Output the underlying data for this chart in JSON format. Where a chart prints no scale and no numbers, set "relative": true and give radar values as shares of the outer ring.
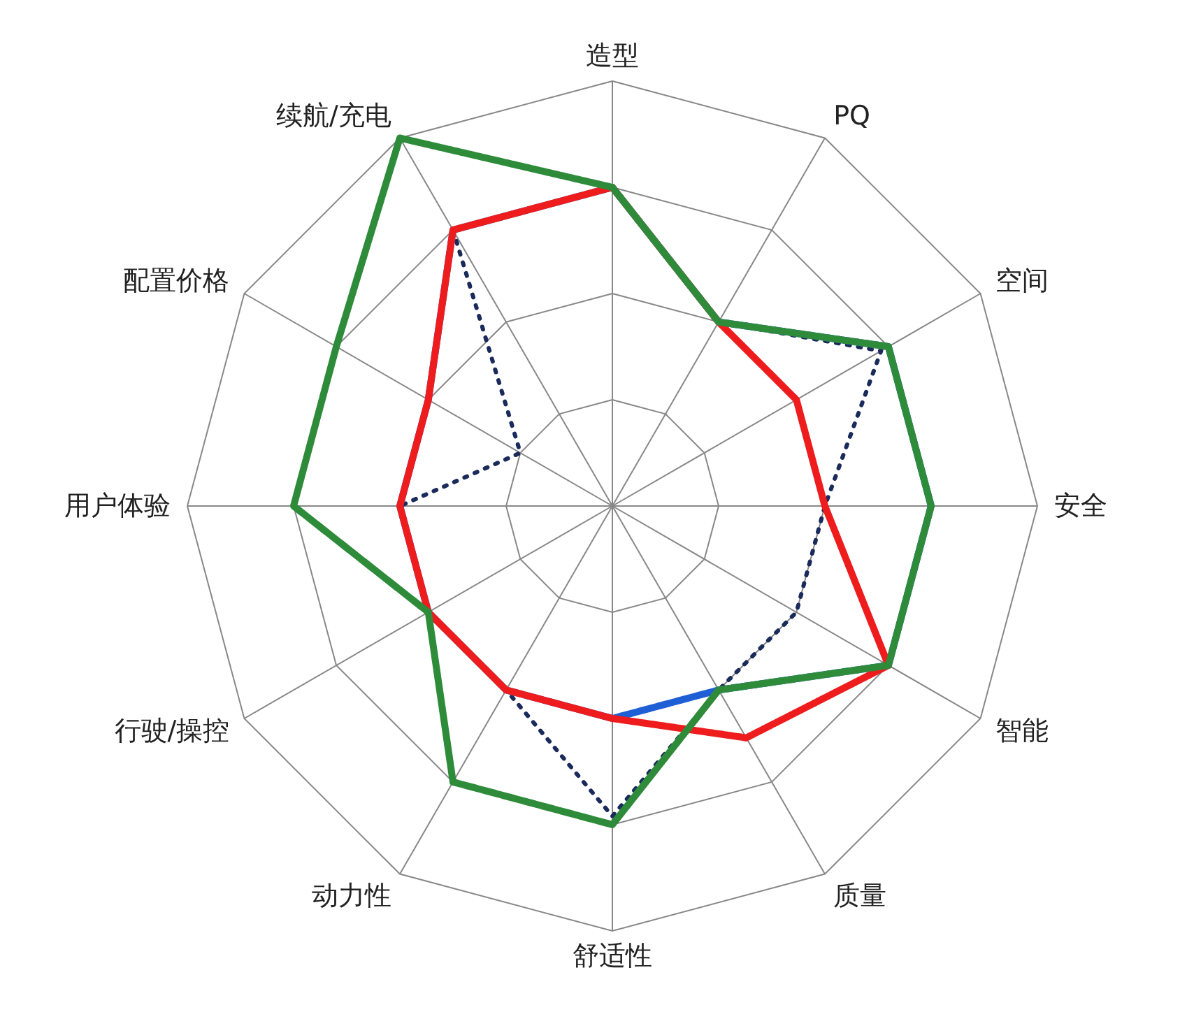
{
  "chart_data": {
    "type": "radar",
    "relative": true,
    "grid": true,
    "marker": "none",
    "categories": [
      "造型",
      "PQ",
      "空间",
      "安全",
      "智能",
      "质量",
      "舒适性",
      "动力性",
      "行驶/操控",
      "用户体验",
      "配置价格",
      "续航/充电"
    ],
    "series": [
      {
        "color": "#1a2a5a",
        "line_style": "dotted",
        "values": [
          0.75,
          0.5,
          0.73,
          0.5,
          0.5,
          0.5,
          0.73,
          0.5,
          0.5,
          0.5,
          0.25,
          0.75
        ]
      },
      {
        "color": "#1f5fd6",
        "line_style": "solid",
        "values": [
          0.75,
          0.5,
          0.75,
          0.75,
          0.75,
          0.5,
          0.5,
          0.5,
          0.5,
          0.5,
          0.5,
          0.75
        ]
      },
      {
        "color": "#ee1c1c",
        "line_style": "solid",
        "values": [
          0.75,
          0.5,
          0.5,
          0.5,
          0.75,
          0.63,
          0.5,
          0.5,
          0.5,
          0.5,
          0.5,
          0.75
        ]
      },
      {
        "color": "#2e8b3a",
        "line_style": "solid",
        "values": [
          0.75,
          0.5,
          0.75,
          0.75,
          0.75,
          0.5,
          0.75,
          0.75,
          0.5,
          0.75,
          0.75,
          1.0
        ]
      }
    ]
  }
}
